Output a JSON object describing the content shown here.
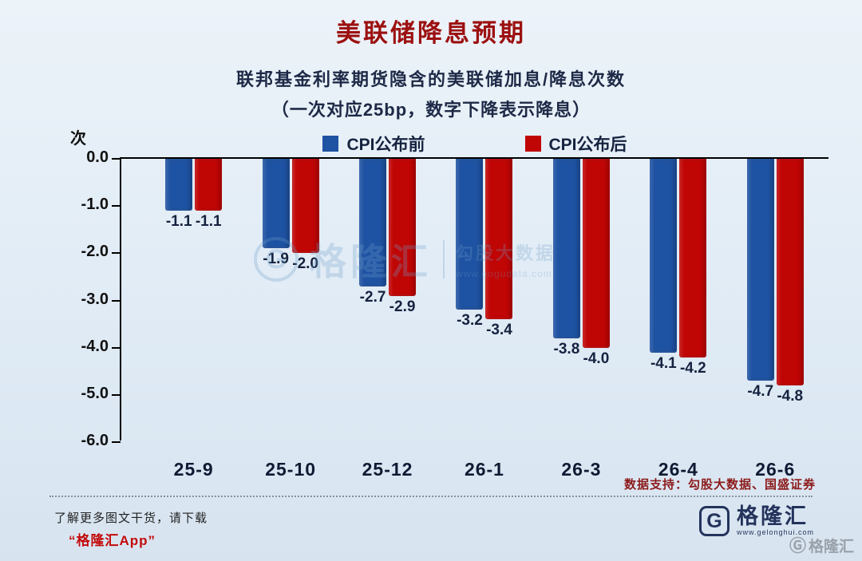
{
  "page": {
    "title": "美联储降息预期",
    "subtitle_line1": "联邦基金利率期货隐含的美联储加息/降息次数",
    "subtitle_line2": "（一次对应25bp，数字下降表示降息）",
    "unit_label": "次",
    "data_support": "数据支持：勾股大数据、国盛证券"
  },
  "footer": {
    "download_hint": "了解更多图文干货，请下载",
    "app_name": "“格隆汇App”",
    "brand_initial": "G",
    "brand_name": "格隆汇",
    "brand_url": "www.gelonghui.com"
  },
  "watermark": {
    "logo_initial": "G",
    "brand": "格隆汇",
    "partner": "勾股大数据",
    "partner_url": "www.gogudata.com",
    "corner_brand": "格隆汇"
  },
  "chart_data": {
    "type": "bar",
    "title": "联邦基金利率期货隐含的美联储加息/降息次数",
    "subtitle": "（一次对应25bp，数字下降表示降息）",
    "categories": [
      "25-9",
      "25-10",
      "25-12",
      "26-1",
      "26-3",
      "26-4",
      "26-6"
    ],
    "series": [
      {
        "name": "CPI公布前",
        "color": "#1e52a2",
        "values": [
          -1.1,
          -1.9,
          -2.7,
          -3.2,
          -3.8,
          -4.1,
          -4.7
        ]
      },
      {
        "name": "CPI公布后",
        "color": "#c00505",
        "values": [
          -1.1,
          -2.0,
          -2.9,
          -3.4,
          -4.0,
          -4.2,
          -4.8
        ]
      }
    ],
    "xlabel": "",
    "ylabel": "次",
    "ylim": [
      -6.0,
      0.0
    ],
    "yticks": [
      0.0,
      -1.0,
      -2.0,
      -3.0,
      -4.0,
      -5.0,
      -6.0
    ],
    "grid": false,
    "legend_position": "top",
    "value_labels": true
  }
}
